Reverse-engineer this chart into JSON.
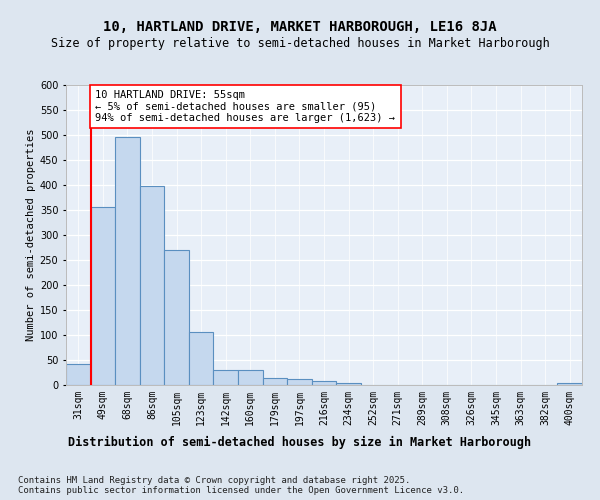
{
  "title1": "10, HARTLAND DRIVE, MARKET HARBOROUGH, LE16 8JA",
  "title2": "Size of property relative to semi-detached houses in Market Harborough",
  "xlabel": "Distribution of semi-detached houses by size in Market Harborough",
  "ylabel": "Number of semi-detached properties",
  "bins": [
    "31sqm",
    "49sqm",
    "68sqm",
    "86sqm",
    "105sqm",
    "123sqm",
    "142sqm",
    "160sqm",
    "179sqm",
    "197sqm",
    "216sqm",
    "234sqm",
    "252sqm",
    "271sqm",
    "289sqm",
    "308sqm",
    "326sqm",
    "345sqm",
    "363sqm",
    "382sqm",
    "400sqm"
  ],
  "values": [
    42,
    357,
    497,
    398,
    270,
    107,
    31,
    31,
    15,
    12,
    8,
    5,
    0,
    0,
    0,
    0,
    0,
    0,
    0,
    0,
    5
  ],
  "bar_color": "#c5d8ee",
  "bar_edge_color": "#5a8fc0",
  "red_line_bin_index": 1,
  "annotation_text": "10 HARTLAND DRIVE: 55sqm\n← 5% of semi-detached houses are smaller (95)\n94% of semi-detached houses are larger (1,623) →",
  "footnote": "Contains HM Land Registry data © Crown copyright and database right 2025.\nContains public sector information licensed under the Open Government Licence v3.0.",
  "ylim": [
    0,
    600
  ],
  "yticks": [
    0,
    50,
    100,
    150,
    200,
    250,
    300,
    350,
    400,
    450,
    500,
    550,
    600
  ],
  "bg_color": "#dde6f0",
  "plot_bg_color": "#e8eff8",
  "title1_fontsize": 10,
  "title2_fontsize": 8.5,
  "xlabel_fontsize": 8.5,
  "ylabel_fontsize": 7.5,
  "tick_fontsize": 7,
  "annotation_fontsize": 7.5,
  "footnote_fontsize": 6.5,
  "grid_color": "#ffffff",
  "spine_color": "#bbbbbb"
}
